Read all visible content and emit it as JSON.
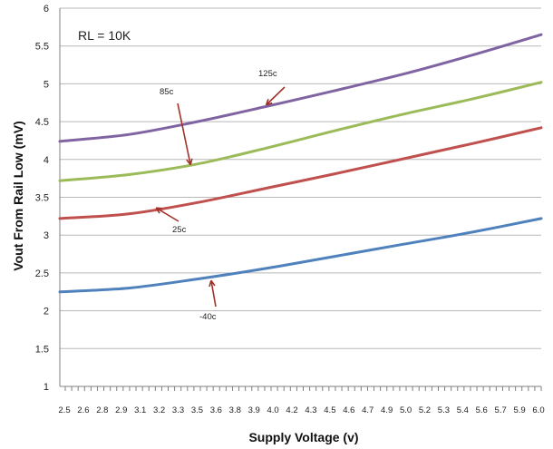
{
  "chart_data": {
    "type": "line",
    "title": "",
    "xlabel": "Supply Voltage (v)",
    "ylabel": "Vout From Rail Low (mV)",
    "ylim": [
      1,
      6
    ],
    "xlim": [
      2.5,
      6.0
    ],
    "grid": "horizontal",
    "y_ticks": [
      "1",
      "1.5",
      "2",
      "2.5",
      "3",
      "3.5",
      "4",
      "4.5",
      "5",
      "5.5",
      "6"
    ],
    "y_tick_values": [
      1,
      1.5,
      2,
      2.5,
      3,
      3.5,
      4,
      4.5,
      5,
      5.5,
      6
    ],
    "x_ticks": [
      "2.5",
      "2.6",
      "2.8",
      "2.9",
      "3.1",
      "3.2",
      "3.3",
      "3.5",
      "3.6",
      "3.8",
      "3.9",
      "4.0",
      "4.2",
      "4.3",
      "4.5",
      "4.6",
      "4.7",
      "4.9",
      "5.0",
      "5.2",
      "5.3",
      "5.4",
      "5.6",
      "5.7",
      "5.9",
      "6.0"
    ],
    "note": "RL = 10K",
    "series": [
      {
        "name": "-40C",
        "color": "#4f81bd",
        "x": [
          2.5,
          3.0,
          3.5,
          4.0,
          4.5,
          5.0,
          5.5,
          6.0
        ],
        "y": [
          2.25,
          2.3,
          2.42,
          2.56,
          2.72,
          2.88,
          3.04,
          3.22
        ]
      },
      {
        "name": "25C",
        "color": "#c0504d",
        "x": [
          2.5,
          3.0,
          3.5,
          4.0,
          4.5,
          5.0,
          5.5,
          6.0
        ],
        "y": [
          3.22,
          3.28,
          3.43,
          3.62,
          3.81,
          4.01,
          4.21,
          4.42
        ]
      },
      {
        "name": "85C",
        "color": "#9bbb59",
        "x": [
          2.5,
          3.0,
          3.5,
          4.0,
          4.5,
          5.0,
          5.5,
          6.0
        ],
        "y": [
          3.72,
          3.8,
          3.94,
          4.15,
          4.38,
          4.6,
          4.8,
          5.02
        ]
      },
      {
        "name": "125C",
        "color": "#8064a2",
        "x": [
          2.5,
          3.0,
          3.5,
          4.0,
          4.5,
          5.0,
          5.5,
          6.0
        ],
        "y": [
          4.24,
          4.33,
          4.5,
          4.7,
          4.91,
          5.13,
          5.38,
          5.65
        ]
      }
    ],
    "annotations": [
      {
        "text": "125c",
        "series": "125C",
        "x": 4.0,
        "y": 4.72
      },
      {
        "text": "85c",
        "series": "85C",
        "x": 3.45,
        "y": 3.93
      },
      {
        "text": "25c",
        "series": "25C",
        "x": 3.2,
        "y": 3.36
      },
      {
        "text": "-40c",
        "series": "-40C",
        "x": 3.6,
        "y": 2.4
      }
    ],
    "annotation_color": "#a0322a"
  }
}
